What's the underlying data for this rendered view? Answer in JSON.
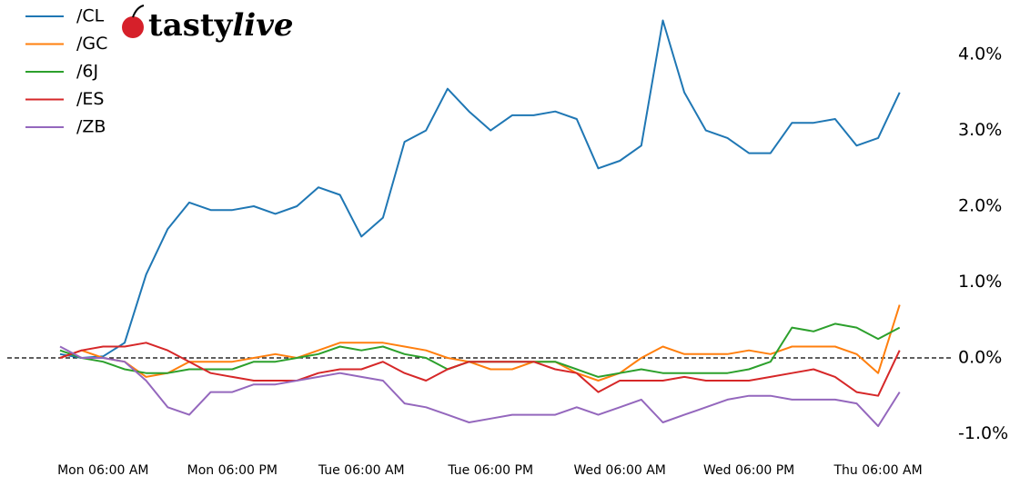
{
  "logo": {
    "bold": "tasty",
    "italic": "live"
  },
  "chart_data": {
    "type": "line",
    "x": [
      "Mon 02:00 AM",
      "Mon 04:00 AM",
      "Mon 06:00 AM",
      "Mon 08:00 AM",
      "Mon 10:00 AM",
      "Mon 12:00 PM",
      "Mon 02:00 PM",
      "Mon 04:00 PM",
      "Mon 06:00 PM",
      "Mon 08:00 PM",
      "Mon 10:00 PM",
      "Tue 12:00 AM",
      "Tue 02:00 AM",
      "Tue 04:00 AM",
      "Tue 06:00 AM",
      "Tue 08:00 AM",
      "Tue 10:00 AM",
      "Tue 12:00 PM",
      "Tue 02:00 PM",
      "Tue 04:00 PM",
      "Tue 06:00 PM",
      "Tue 08:00 PM",
      "Tue 10:00 PM",
      "Wed 12:00 AM",
      "Wed 02:00 AM",
      "Wed 04:00 AM",
      "Wed 06:00 AM",
      "Wed 08:00 AM",
      "Wed 10:00 AM",
      "Wed 12:00 PM",
      "Wed 02:00 PM",
      "Wed 04:00 PM",
      "Wed 06:00 PM",
      "Wed 08:00 PM",
      "Wed 10:00 PM",
      "Thu 12:00 AM",
      "Thu 02:00 AM",
      "Thu 04:00 AM",
      "Thu 06:00 AM",
      "Thu 08:00 AM"
    ],
    "xticks": [
      "Mon 06:00 AM",
      "Mon 06:00 PM",
      "Tue 06:00 AM",
      "Tue 06:00 PM",
      "Wed 06:00 AM",
      "Wed 06:00 PM",
      "Thu 06:00 AM"
    ],
    "ylim": [
      -1.15,
      4.6
    ],
    "yticks": [
      {
        "value": -1,
        "label": "-1.0%"
      },
      {
        "value": 0,
        "label": "0.0%"
      },
      {
        "value": 1,
        "label": "1.0%"
      },
      {
        "value": 2,
        "label": "2.0%"
      },
      {
        "value": 3,
        "label": "3.0%"
      },
      {
        "value": 4,
        "label": "4.0%"
      }
    ],
    "zero_line": true,
    "legend": "upper left",
    "series": [
      {
        "name": "/CL",
        "color": "#1f77b4",
        "values": [
          0.05,
          0.0,
          0.02,
          0.2,
          1.1,
          1.7,
          2.05,
          1.95,
          1.95,
          2.0,
          1.9,
          2.0,
          2.25,
          2.15,
          1.6,
          1.85,
          2.85,
          3.0,
          3.55,
          3.25,
          3.0,
          3.2,
          3.2,
          3.25,
          3.15,
          2.5,
          2.6,
          2.8,
          4.45,
          3.5,
          3.0,
          2.9,
          2.7,
          2.7,
          3.1,
          3.1,
          3.15,
          2.8,
          2.9,
          3.5
        ]
      },
      {
        "name": "/GC",
        "color": "#ff7f0e",
        "values": [
          0.0,
          0.1,
          0.0,
          -0.05,
          -0.25,
          -0.2,
          -0.05,
          -0.05,
          -0.05,
          0.0,
          0.05,
          0.0,
          0.1,
          0.2,
          0.2,
          0.2,
          0.15,
          0.1,
          0.0,
          -0.05,
          -0.15,
          -0.15,
          -0.05,
          -0.05,
          -0.2,
          -0.3,
          -0.2,
          0.0,
          0.15,
          0.05,
          0.05,
          0.05,
          0.1,
          0.05,
          0.15,
          0.15,
          0.15,
          0.05,
          -0.2,
          0.7
        ]
      },
      {
        "name": "/6J",
        "color": "#2ca02c",
        "values": [
          0.1,
          0.0,
          -0.05,
          -0.15,
          -0.2,
          -0.2,
          -0.15,
          -0.15,
          -0.15,
          -0.05,
          -0.05,
          0.0,
          0.05,
          0.15,
          0.1,
          0.15,
          0.05,
          0.0,
          -0.15,
          -0.05,
          -0.05,
          -0.05,
          -0.05,
          -0.05,
          -0.15,
          -0.25,
          -0.2,
          -0.15,
          -0.2,
          -0.2,
          -0.2,
          -0.2,
          -0.15,
          -0.05,
          0.4,
          0.35,
          0.45,
          0.4,
          0.25,
          0.4
        ]
      },
      {
        "name": "/ES",
        "color": "#d62728",
        "values": [
          0.0,
          0.1,
          0.15,
          0.15,
          0.2,
          0.1,
          -0.05,
          -0.2,
          -0.25,
          -0.3,
          -0.3,
          -0.3,
          -0.2,
          -0.15,
          -0.15,
          -0.05,
          -0.2,
          -0.3,
          -0.15,
          -0.05,
          -0.05,
          -0.05,
          -0.05,
          -0.15,
          -0.2,
          -0.45,
          -0.3,
          -0.3,
          -0.3,
          -0.25,
          -0.3,
          -0.3,
          -0.3,
          -0.25,
          -0.2,
          -0.15,
          -0.25,
          -0.45,
          -0.5,
          0.1
        ]
      },
      {
        "name": "/ZB",
        "color": "#9467bd",
        "values": [
          0.15,
          0.0,
          0.0,
          -0.05,
          -0.3,
          -0.65,
          -0.75,
          -0.45,
          -0.45,
          -0.35,
          -0.35,
          -0.3,
          -0.25,
          -0.2,
          -0.25,
          -0.3,
          -0.6,
          -0.65,
          -0.75,
          -0.85,
          -0.8,
          -0.75,
          -0.75,
          -0.75,
          -0.65,
          -0.75,
          -0.65,
          -0.55,
          -0.85,
          -0.75,
          -0.65,
          -0.55,
          -0.5,
          -0.5,
          -0.55,
          -0.55,
          -0.55,
          -0.6,
          -0.9,
          -0.45
        ]
      }
    ]
  }
}
